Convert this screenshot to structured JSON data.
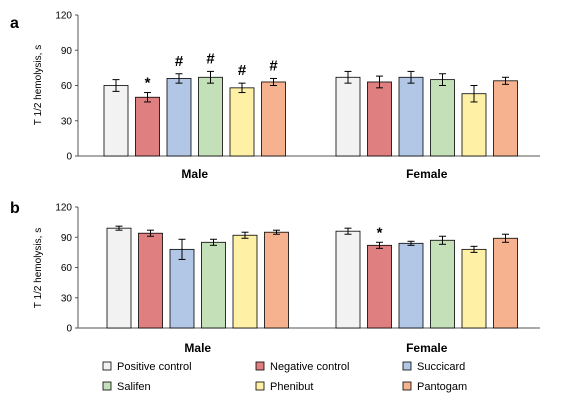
{
  "legend_series": [
    "Positive control",
    "Negative control",
    "Succicard",
    "Salifen",
    "Phenibut",
    "Pantogam"
  ],
  "colors": [
    "#f2f2f2",
    "#e07f7f",
    "#b2c6e6",
    "#c4e0b8",
    "#fef1a6",
    "#f6b28e"
  ],
  "chart_data": [
    {
      "type": "bar",
      "panel_label": "a",
      "ylabel": "T 1/2 hemolysis, s",
      "ylim": [
        0,
        120
      ],
      "yticks": [
        0,
        30,
        60,
        90,
        120
      ],
      "categories": [
        "Male",
        "Female"
      ],
      "series": [
        {
          "name": "Positive control",
          "values": [
            60,
            67
          ],
          "errors": [
            5,
            5
          ],
          "marks": [
            "",
            ""
          ]
        },
        {
          "name": "Negative control",
          "values": [
            50,
            63
          ],
          "errors": [
            4,
            5
          ],
          "marks": [
            "*",
            ""
          ]
        },
        {
          "name": "Succicard",
          "values": [
            66,
            67
          ],
          "errors": [
            4,
            5
          ],
          "marks": [
            "#",
            ""
          ]
        },
        {
          "name": "Salifen",
          "values": [
            67,
            65
          ],
          "errors": [
            5,
            5
          ],
          "marks": [
            "#",
            ""
          ]
        },
        {
          "name": "Phenibut",
          "values": [
            58,
            53
          ],
          "errors": [
            4,
            7
          ],
          "marks": [
            "#",
            ""
          ]
        },
        {
          "name": "Pantogam",
          "values": [
            63,
            64
          ],
          "errors": [
            3,
            3
          ],
          "marks": [
            "#",
            ""
          ]
        }
      ]
    },
    {
      "type": "bar",
      "panel_label": "b",
      "ylabel": "T 1/2 hemolysis, s",
      "ylim": [
        0,
        120
      ],
      "yticks": [
        0,
        30,
        60,
        90,
        120
      ],
      "categories": [
        "Male",
        "Female"
      ],
      "series": [
        {
          "name": "Positive control",
          "values": [
            99,
            96
          ],
          "errors": [
            2,
            3
          ],
          "marks": [
            "",
            ""
          ]
        },
        {
          "name": "Negative control",
          "values": [
            94,
            82
          ],
          "errors": [
            3,
            3
          ],
          "marks": [
            "",
            "*"
          ]
        },
        {
          "name": "Succicard",
          "values": [
            78,
            84
          ],
          "errors": [
            10,
            2
          ],
          "marks": [
            "",
            ""
          ]
        },
        {
          "name": "Salifen",
          "values": [
            85,
            87
          ],
          "errors": [
            3,
            4
          ],
          "marks": [
            "",
            ""
          ]
        },
        {
          "name": "Phenibut",
          "values": [
            92,
            78
          ],
          "errors": [
            3,
            3
          ],
          "marks": [
            "",
            ""
          ]
        },
        {
          "name": "Pantogam",
          "values": [
            95,
            89
          ],
          "errors": [
            2,
            4
          ],
          "marks": [
            "",
            ""
          ]
        }
      ]
    }
  ]
}
